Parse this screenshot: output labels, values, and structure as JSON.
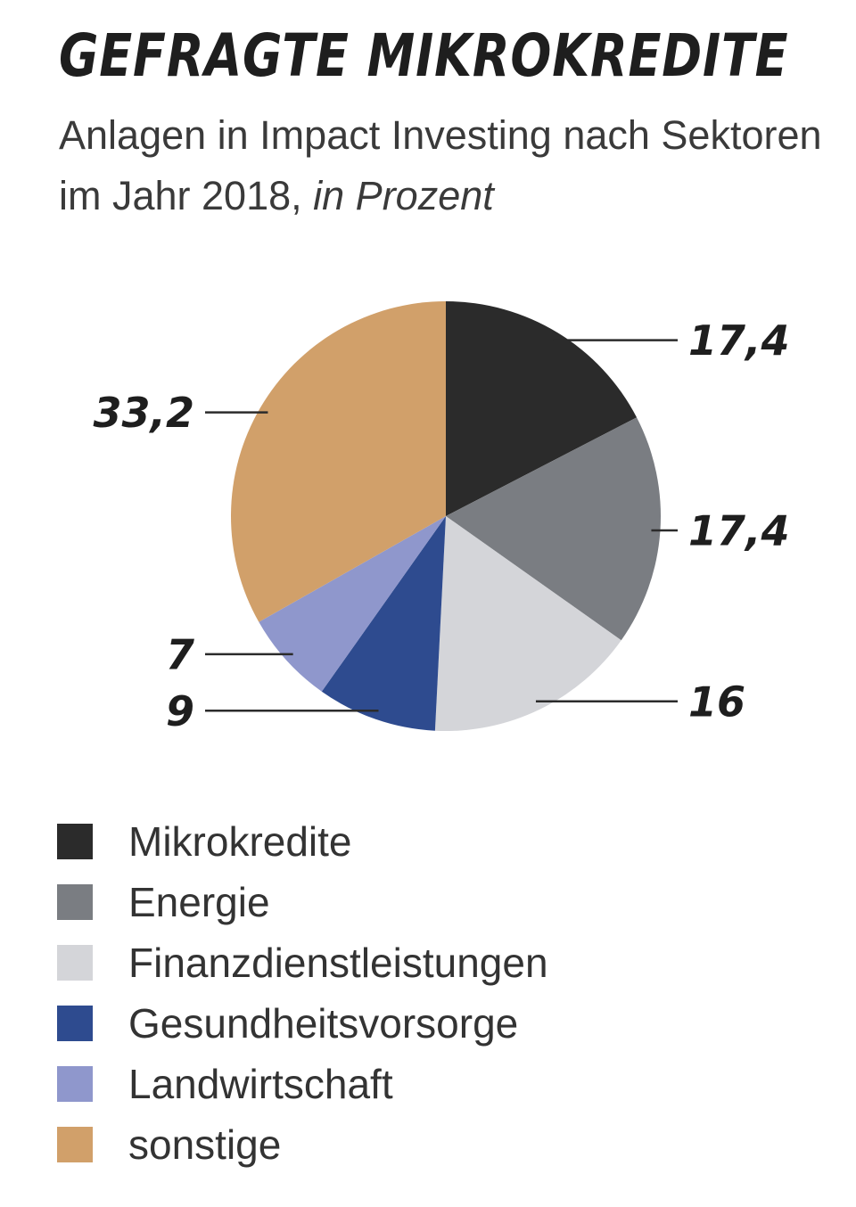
{
  "header": {
    "title": "GEFRAGTE MIKROKREDITE",
    "subtitle_main": "Anlagen in Impact Investing nach Sektoren im Jahr 2018,",
    "subtitle_unit": "in Prozent"
  },
  "chart_data": {
    "type": "pie",
    "title": "GEFRAGTE MIKROKREDITE",
    "subtitle": "Anlagen in Impact Investing nach Sektoren im Jahr 2018, in Prozent",
    "start_angle_deg": 0,
    "direction": "clockwise",
    "slices": [
      {
        "label": "Mikrokredite",
        "value": 17.4,
        "value_label": "17,4",
        "color": "#2b2b2b",
        "label_side": "right"
      },
      {
        "label": "Energie",
        "value": 17.4,
        "value_label": "17,4",
        "color": "#7a7d82",
        "label_side": "right"
      },
      {
        "label": "Finanzdienstleistungen",
        "value": 16,
        "value_label": "16",
        "color": "#d4d5d9",
        "label_side": "right"
      },
      {
        "label": "Gesundheitsvorsorge",
        "value": 9,
        "value_label": "9",
        "color": "#2e4b8f",
        "label_side": "left"
      },
      {
        "label": "Landwirtschaft",
        "value": 7,
        "value_label": "7",
        "color": "#8f97cc",
        "label_side": "left"
      },
      {
        "label": "sonstige",
        "value": 33.2,
        "value_label": "33,2",
        "color": "#d1a06a",
        "label_side": "left"
      }
    ],
    "legend": [
      "Mikrokredite",
      "Energie",
      "Finanzdienstleistungen",
      "Gesundheitsvorsorge",
      "Landwirtschaft",
      "sonstige"
    ],
    "legend_position": "bottom-left"
  }
}
